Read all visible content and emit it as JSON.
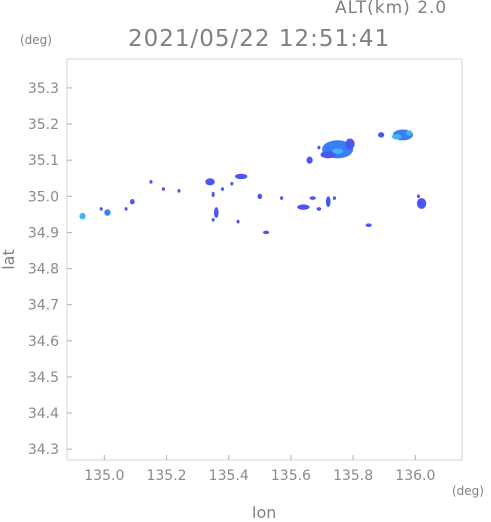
{
  "chart_data": {
    "type": "scatter",
    "title": "2021/05/22 12:51:41",
    "subtitle": "ALT(km) 2.0",
    "xlabel": "lon",
    "ylabel": "lat",
    "xunit": "(deg)",
    "yunit": "(deg)",
    "xlim": [
      134.88,
      136.15
    ],
    "ylim": [
      34.27,
      35.38
    ],
    "xticks": [
      "135.0",
      "135.2",
      "135.4",
      "135.6",
      "135.8",
      "136.0"
    ],
    "xtick_values": [
      135.0,
      135.2,
      135.4,
      135.6,
      135.8,
      136.0
    ],
    "yticks": [
      "34.3",
      "34.4",
      "34.5",
      "34.6",
      "34.7",
      "34.8",
      "34.9",
      "35.0",
      "35.1",
      "35.2",
      "35.3"
    ],
    "ytick_values": [
      34.3,
      34.4,
      34.5,
      34.6,
      34.7,
      34.8,
      34.9,
      35.0,
      35.1,
      35.2,
      35.3
    ],
    "grid": false,
    "colors": {
      "weak": "#4d57f0",
      "moderate": "#3a7ef7",
      "strong": "#3fb6f5"
    },
    "echoes": [
      {
        "lon": 134.93,
        "lat": 34.945,
        "w": 0.02,
        "h": 0.018,
        "level": "strong"
      },
      {
        "lon": 135.01,
        "lat": 34.955,
        "w": 0.02,
        "h": 0.018,
        "level": "moderate"
      },
      {
        "lon": 134.99,
        "lat": 34.965,
        "w": 0.01,
        "h": 0.01,
        "level": "weak"
      },
      {
        "lon": 135.09,
        "lat": 34.985,
        "w": 0.015,
        "h": 0.015,
        "level": "weak"
      },
      {
        "lon": 135.07,
        "lat": 34.965,
        "w": 0.01,
        "h": 0.01,
        "level": "weak"
      },
      {
        "lon": 135.15,
        "lat": 35.04,
        "w": 0.01,
        "h": 0.01,
        "level": "weak"
      },
      {
        "lon": 135.19,
        "lat": 35.02,
        "w": 0.01,
        "h": 0.01,
        "level": "weak"
      },
      {
        "lon": 135.24,
        "lat": 35.015,
        "w": 0.01,
        "h": 0.01,
        "level": "weak"
      },
      {
        "lon": 135.34,
        "lat": 35.04,
        "w": 0.03,
        "h": 0.02,
        "level": "weak"
      },
      {
        "lon": 135.35,
        "lat": 35.005,
        "w": 0.01,
        "h": 0.015,
        "level": "weak"
      },
      {
        "lon": 135.38,
        "lat": 35.02,
        "w": 0.01,
        "h": 0.01,
        "level": "weak"
      },
      {
        "lon": 135.44,
        "lat": 35.055,
        "w": 0.04,
        "h": 0.015,
        "level": "weak"
      },
      {
        "lon": 135.41,
        "lat": 35.035,
        "w": 0.01,
        "h": 0.01,
        "level": "weak"
      },
      {
        "lon": 135.36,
        "lat": 34.955,
        "w": 0.015,
        "h": 0.03,
        "level": "weak"
      },
      {
        "lon": 135.35,
        "lat": 34.935,
        "w": 0.01,
        "h": 0.01,
        "level": "weak"
      },
      {
        "lon": 135.43,
        "lat": 34.93,
        "w": 0.01,
        "h": 0.01,
        "level": "weak"
      },
      {
        "lon": 135.5,
        "lat": 35.0,
        "w": 0.015,
        "h": 0.015,
        "level": "weak"
      },
      {
        "lon": 135.52,
        "lat": 34.9,
        "w": 0.02,
        "h": 0.01,
        "level": "weak"
      },
      {
        "lon": 135.57,
        "lat": 34.995,
        "w": 0.01,
        "h": 0.01,
        "level": "weak"
      },
      {
        "lon": 135.64,
        "lat": 34.97,
        "w": 0.04,
        "h": 0.015,
        "level": "weak"
      },
      {
        "lon": 135.67,
        "lat": 34.995,
        "w": 0.02,
        "h": 0.01,
        "level": "weak"
      },
      {
        "lon": 135.69,
        "lat": 34.965,
        "w": 0.015,
        "h": 0.01,
        "level": "weak"
      },
      {
        "lon": 135.72,
        "lat": 34.985,
        "w": 0.015,
        "h": 0.03,
        "level": "weak"
      },
      {
        "lon": 135.74,
        "lat": 34.995,
        "w": 0.01,
        "h": 0.01,
        "level": "weak"
      },
      {
        "lon": 135.85,
        "lat": 34.92,
        "w": 0.02,
        "h": 0.01,
        "level": "weak"
      },
      {
        "lon": 136.02,
        "lat": 34.98,
        "w": 0.03,
        "h": 0.03,
        "level": "weak"
      },
      {
        "lon": 136.01,
        "lat": 35.0,
        "w": 0.01,
        "h": 0.01,
        "level": "weak"
      },
      {
        "lon": 135.66,
        "lat": 35.1,
        "w": 0.02,
        "h": 0.02,
        "level": "weak"
      },
      {
        "lon": 135.69,
        "lat": 35.135,
        "w": 0.01,
        "h": 0.01,
        "level": "weak"
      },
      {
        "lon": 135.75,
        "lat": 35.13,
        "w": 0.1,
        "h": 0.05,
        "level": "moderate"
      },
      {
        "lon": 135.72,
        "lat": 35.115,
        "w": 0.05,
        "h": 0.02,
        "level": "weak"
      },
      {
        "lon": 135.79,
        "lat": 35.145,
        "w": 0.03,
        "h": 0.03,
        "level": "weak"
      },
      {
        "lon": 135.75,
        "lat": 35.125,
        "w": 0.035,
        "h": 0.015,
        "level": "strong"
      },
      {
        "lon": 135.89,
        "lat": 35.17,
        "w": 0.02,
        "h": 0.015,
        "level": "weak"
      },
      {
        "lon": 135.96,
        "lat": 35.17,
        "w": 0.065,
        "h": 0.03,
        "level": "moderate"
      },
      {
        "lon": 135.94,
        "lat": 35.165,
        "w": 0.03,
        "h": 0.015,
        "level": "strong"
      },
      {
        "lon": 135.98,
        "lat": 35.175,
        "w": 0.02,
        "h": 0.015,
        "level": "strong"
      }
    ]
  }
}
